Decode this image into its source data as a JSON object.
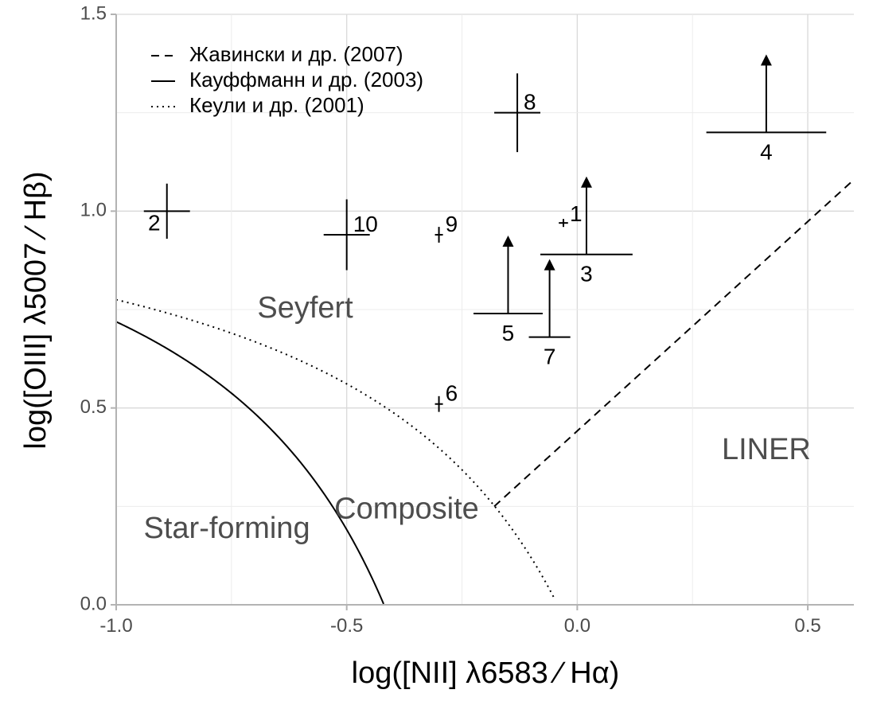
{
  "chart_data": {
    "type": "scatter",
    "xlabel": "log([NII] λ6583 ⁄ Hα)",
    "ylabel": "log([OIII] λ5007 ⁄ Hβ)",
    "xlim": [
      -1.0,
      0.6
    ],
    "ylim": [
      0.0,
      1.5
    ],
    "x_ticks": [
      {
        "value": -1.0,
        "label": "-1.0"
      },
      {
        "value": -0.5,
        "label": "-0.5"
      },
      {
        "value": 0.0,
        "label": "0.0"
      },
      {
        "value": 0.5,
        "label": "0.5"
      }
    ],
    "y_ticks": [
      {
        "value": 0.0,
        "label": "0.0"
      },
      {
        "value": 0.5,
        "label": "0.5"
      },
      {
        "value": 1.0,
        "label": "1.0"
      },
      {
        "value": 1.5,
        "label": "1.5"
      }
    ],
    "grid": true,
    "legend_position": "top-left",
    "legend": [
      {
        "label": "Жавински и др. (2007)",
        "style": "dashed"
      },
      {
        "label": "Кауффманн и др. (2003)",
        "style": "solid"
      },
      {
        "label": "Кеули и др. (2001)",
        "style": "dotted"
      }
    ],
    "curves": {
      "kauffmann": {
        "style": "solid",
        "x_max": -0.42
      },
      "kewley": {
        "style": "dotted",
        "x_max": -0.05
      },
      "schawinski": {
        "style": "dashed",
        "x": [
          -0.18,
          0.6
        ],
        "y": [
          0.25,
          1.08
        ]
      }
    },
    "regions": [
      {
        "label": "Seyfert",
        "x": -0.59,
        "y": 0.75
      },
      {
        "label": "Star-forming",
        "x": -0.76,
        "y": 0.19
      },
      {
        "label": "Composite",
        "x": -0.37,
        "y": 0.24
      },
      {
        "label": "LINER",
        "x": 0.41,
        "y": 0.39
      }
    ],
    "points": [
      {
        "id": "1",
        "x": -0.03,
        "y": 0.97,
        "xerr": 0.01,
        "yerr": 0.01,
        "lower_limit": false
      },
      {
        "id": "2",
        "x": -0.89,
        "y": 1.0,
        "xerr": 0.05,
        "yerr": 0.07,
        "lower_limit": false
      },
      {
        "id": "3",
        "x": 0.02,
        "y": 0.89,
        "xerr": 0.1,
        "yerr": 0,
        "lower_limit": true,
        "arrow_to": 1.08
      },
      {
        "id": "4",
        "x": 0.41,
        "y": 1.2,
        "xerr": 0.13,
        "yerr": 0,
        "lower_limit": true,
        "arrow_to": 1.39
      },
      {
        "id": "5",
        "x": -0.15,
        "y": 0.74,
        "xerr": 0.075,
        "yerr": 0,
        "lower_limit": true,
        "arrow_to": 0.93
      },
      {
        "id": "6",
        "x": -0.3,
        "y": 0.51,
        "xerr": 0.008,
        "yerr": 0.02,
        "lower_limit": false
      },
      {
        "id": "7",
        "x": -0.06,
        "y": 0.68,
        "xerr": 0.045,
        "yerr": 0,
        "lower_limit": true,
        "arrow_to": 0.87
      },
      {
        "id": "8",
        "x": -0.13,
        "y": 1.25,
        "xerr": 0.05,
        "yerr": 0.1,
        "lower_limit": false
      },
      {
        "id": "9",
        "x": -0.3,
        "y": 0.94,
        "xerr": 0.008,
        "yerr": 0.02,
        "lower_limit": false
      },
      {
        "id": "10",
        "x": -0.5,
        "y": 0.94,
        "xerr": 0.05,
        "yerr": 0.09,
        "lower_limit": false
      }
    ]
  }
}
